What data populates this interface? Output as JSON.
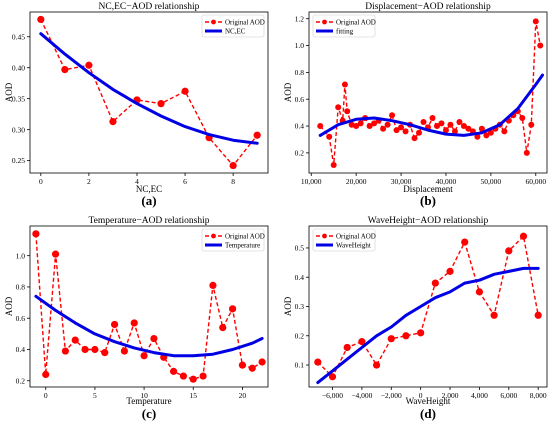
{
  "colors": {
    "original": "#ff0000",
    "fit": "#0000e6",
    "axis": "#000000",
    "background": "#ffffff"
  },
  "chart_data": [
    {
      "type": "line",
      "panel": "(a)",
      "title": "NC,EC−AOD relationship",
      "xlabel": "NC,EC",
      "ylabel": "AOD",
      "xlim": [
        -0.45,
        9.45
      ],
      "ylim": [
        0.23,
        0.49
      ],
      "xticks": [
        0,
        2,
        4,
        6,
        8
      ],
      "xtick_labels": [
        "0",
        "2",
        "4",
        "6",
        "8"
      ],
      "yticks": [
        0.25,
        0.3,
        0.35,
        0.4,
        0.45
      ],
      "ytick_labels": [
        "0.25",
        "0.30",
        "0.35",
        "0.40",
        "0.45"
      ],
      "legend_position": "top-right",
      "series": [
        {
          "name": "Original AOD",
          "style": "dashed-markers",
          "x": [
            0,
            1,
            2,
            3,
            4,
            5,
            6,
            7,
            8,
            9
          ],
          "y": [
            0.478,
            0.397,
            0.404,
            0.313,
            0.348,
            0.342,
            0.362,
            0.287,
            0.242,
            0.291
          ]
        },
        {
          "name": "NC,EC",
          "style": "solid",
          "x": [
            0,
            1,
            2,
            3,
            4,
            5,
            6,
            7,
            8,
            9
          ],
          "y": [
            0.455,
            0.422,
            0.392,
            0.365,
            0.342,
            0.322,
            0.305,
            0.292,
            0.283,
            0.278
          ]
        }
      ]
    },
    {
      "type": "line",
      "panel": "(b)",
      "title": "Displacement−AOD relationship",
      "xlabel": "Displacement",
      "ylabel": "AOD",
      "xlim": [
        9500,
        62500
      ],
      "ylim": [
        0.05,
        1.25
      ],
      "xticks": [
        10000,
        20000,
        30000,
        40000,
        50000,
        60000
      ],
      "xtick_labels": [
        "10,000",
        "20,000",
        "30,000",
        "40,000",
        "50,000",
        "60,000"
      ],
      "yticks": [
        0.2,
        0.4,
        0.6,
        0.8,
        1.0,
        1.2
      ],
      "ytick_labels": [
        "0.2",
        "0.4",
        "0.6",
        "0.8",
        "1.0",
        "1.2"
      ],
      "legend_position": "top-left",
      "series": [
        {
          "name": "Original AOD",
          "style": "dashed-markers",
          "x": [
            12000,
            14000,
            15000,
            16000,
            17000,
            17500,
            18000,
            19000,
            20000,
            21000,
            22000,
            23000,
            24000,
            25000,
            26000,
            27000,
            28000,
            29000,
            30000,
            31000,
            32000,
            33000,
            34000,
            35000,
            36000,
            37000,
            38000,
            39000,
            40000,
            41000,
            42000,
            43000,
            44000,
            45000,
            46000,
            47000,
            48000,
            49000,
            50000,
            51000,
            52000,
            53000,
            54000,
            55000,
            56000,
            57000,
            58000,
            59000,
            60000,
            61000
          ],
          "y": [
            0.4,
            0.32,
            0.11,
            0.54,
            0.44,
            0.71,
            0.51,
            0.41,
            0.4,
            0.42,
            0.46,
            0.4,
            0.42,
            0.44,
            0.38,
            0.41,
            0.48,
            0.37,
            0.39,
            0.36,
            0.41,
            0.31,
            0.35,
            0.43,
            0.39,
            0.46,
            0.4,
            0.42,
            0.37,
            0.41,
            0.36,
            0.43,
            0.4,
            0.38,
            0.36,
            0.32,
            0.38,
            0.33,
            0.35,
            0.38,
            0.41,
            0.36,
            0.44,
            0.48,
            0.51,
            0.46,
            0.2,
            0.41,
            1.18,
            1.0
          ]
        },
        {
          "name": "fitting",
          "style": "solid",
          "x": [
            12000,
            16000,
            20000,
            24000,
            28000,
            32000,
            36000,
            40000,
            44000,
            48000,
            52000,
            56000,
            60000,
            61500
          ],
          "y": [
            0.33,
            0.41,
            0.45,
            0.46,
            0.44,
            0.41,
            0.37,
            0.34,
            0.33,
            0.35,
            0.41,
            0.53,
            0.71,
            0.78
          ]
        }
      ]
    },
    {
      "type": "line",
      "panel": "(c)",
      "title": "Temperature−AOD relationship",
      "xlabel": "Temperature",
      "ylabel": "AOD",
      "xlim": [
        -1.6,
        22.6
      ],
      "ylim": [
        0.16,
        1.19
      ],
      "xticks": [
        0,
        5,
        10,
        15,
        20
      ],
      "xtick_labels": [
        "0",
        "5",
        "10",
        "15",
        "20"
      ],
      "yticks": [
        0.2,
        0.4,
        0.6,
        0.8,
        1.0
      ],
      "ytick_labels": [
        "0.2",
        "0.4",
        "0.6",
        "0.8",
        "1.0"
      ],
      "legend_position": "top-right",
      "series": [
        {
          "name": "Original AOD",
          "style": "dashed-markers",
          "x": [
            -1,
            0,
            1,
            2,
            3,
            4,
            5,
            6,
            7,
            8,
            9,
            10,
            11,
            12,
            13,
            14,
            15,
            16,
            17,
            18,
            19,
            20,
            21,
            22
          ],
          "y": [
            1.14,
            0.24,
            1.01,
            0.39,
            0.46,
            0.4,
            0.4,
            0.38,
            0.56,
            0.39,
            0.57,
            0.36,
            0.47,
            0.35,
            0.26,
            0.23,
            0.21,
            0.23,
            0.81,
            0.54,
            0.66,
            0.3,
            0.28,
            0.32
          ]
        },
        {
          "name": "Temperature",
          "style": "solid",
          "x": [
            -1,
            1,
            3,
            5,
            7,
            9,
            11,
            13,
            15,
            17,
            19,
            21,
            22
          ],
          "y": [
            0.74,
            0.65,
            0.57,
            0.5,
            0.45,
            0.41,
            0.38,
            0.36,
            0.36,
            0.37,
            0.4,
            0.44,
            0.47
          ]
        }
      ]
    },
    {
      "type": "line",
      "panel": "(d)",
      "title": "WaveHeight−AOD relationship",
      "xlabel": "WaveHeight",
      "ylabel": "AOD",
      "xlim": [
        -7600,
        8600
      ],
      "ylim": [
        0.025,
        0.575
      ],
      "xticks": [
        -6000,
        -4000,
        -2000,
        0,
        2000,
        4000,
        6000,
        8000
      ],
      "xtick_labels": [
        "−6,000",
        "−4,000",
        "−2,000",
        "0",
        "2,000",
        "4,000",
        "6,000",
        "8,000"
      ],
      "yticks": [
        0.1,
        0.2,
        0.3,
        0.4,
        0.5
      ],
      "ytick_labels": [
        "0.1",
        "0.2",
        "0.3",
        "0.4",
        "0.5"
      ],
      "legend_position": "top-left",
      "series": [
        {
          "name": "Original AOD",
          "style": "dashed-markers",
          "x": [
            -7000,
            -6000,
            -5000,
            -4000,
            -3000,
            -2000,
            -1000,
            0,
            1000,
            2000,
            3000,
            4000,
            5000,
            6000,
            7000,
            8000
          ],
          "y": [
            0.11,
            0.06,
            0.16,
            0.18,
            0.1,
            0.19,
            0.2,
            0.21,
            0.38,
            0.42,
            0.52,
            0.35,
            0.27,
            0.49,
            0.54,
            0.27
          ]
        },
        {
          "name": "WaveHeight",
          "style": "solid",
          "x": [
            -7000,
            -6000,
            -5000,
            -4000,
            -3000,
            -2000,
            -1000,
            0,
            1000,
            2000,
            3000,
            4000,
            5000,
            6000,
            7000,
            8000
          ],
          "y": [
            0.04,
            0.08,
            0.12,
            0.16,
            0.2,
            0.23,
            0.27,
            0.3,
            0.33,
            0.35,
            0.38,
            0.39,
            0.41,
            0.42,
            0.43,
            0.43
          ]
        }
      ]
    }
  ]
}
